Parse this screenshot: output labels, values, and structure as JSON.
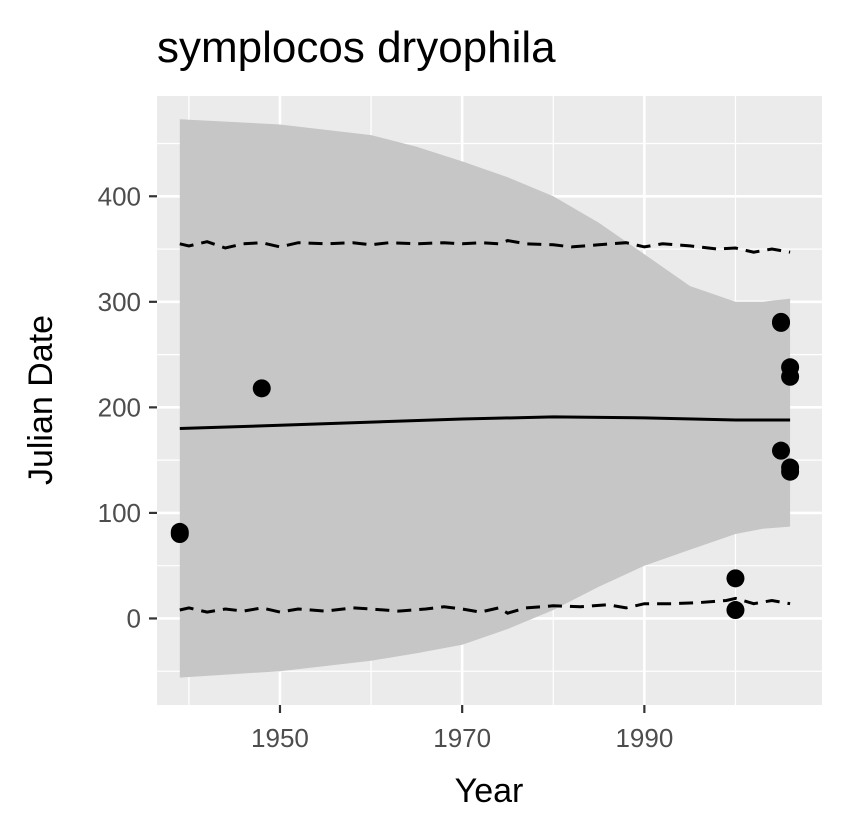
{
  "chart_data": {
    "type": "scatter",
    "title": "symplocos dryophila",
    "xlabel": "Year",
    "ylabel": "Julian Date",
    "xlim": [
      1936.5,
      2009.5
    ],
    "ylim": [
      -82,
      495
    ],
    "x_ticks": [
      1950,
      1970,
      1990
    ],
    "y_ticks": [
      0,
      100,
      200,
      300,
      400
    ],
    "grid": true,
    "legend": "none",
    "colors": {
      "panel": "#ebebeb",
      "grid": "#ffffff",
      "ribbon": "#c6c6c6",
      "line": "#000000",
      "points": "#000000"
    },
    "points": [
      {
        "x": 1939,
        "y": 80
      },
      {
        "x": 1939,
        "y": 82
      },
      {
        "x": 1948,
        "y": 218
      },
      {
        "x": 2000,
        "y": 38
      },
      {
        "x": 2000,
        "y": 8
      },
      {
        "x": 2005,
        "y": 280
      },
      {
        "x": 2005,
        "y": 281
      },
      {
        "x": 2005,
        "y": 159
      },
      {
        "x": 2006,
        "y": 238
      },
      {
        "x": 2006,
        "y": 229
      },
      {
        "x": 2006,
        "y": 143
      },
      {
        "x": 2006,
        "y": 139
      }
    ],
    "fit_line": {
      "x": [
        1939,
        1950,
        1960,
        1970,
        1980,
        1990,
        2000,
        2006
      ],
      "y": [
        180,
        183,
        186,
        189,
        191,
        190,
        188,
        188
      ]
    },
    "ribbon": {
      "x": [
        1939,
        1950,
        1960,
        1965,
        1970,
        1975,
        1980,
        1985,
        1990,
        1995,
        2000,
        2003,
        2006
      ],
      "upper": [
        473,
        468,
        458,
        447,
        433,
        418,
        400,
        375,
        345,
        315,
        300,
        300,
        303
      ],
      "lower": [
        -56,
        -50,
        -40,
        -33,
        -25,
        -10,
        8,
        30,
        50,
        65,
        80,
        85,
        87
      ]
    },
    "dashed_upper": {
      "x": [
        1939,
        1940,
        1942,
        1944,
        1946,
        1948,
        1950,
        1952,
        1955,
        1958,
        1960,
        1962,
        1965,
        1968,
        1970,
        1972,
        1974,
        1975,
        1977,
        1980,
        1982,
        1985,
        1988,
        1990,
        1992,
        1995,
        1998,
        2000,
        2002,
        2004,
        2006
      ],
      "y": [
        355,
        353,
        357,
        351,
        355,
        356,
        352,
        356,
        355,
        356,
        354,
        356,
        355,
        356,
        355,
        356,
        355,
        358,
        355,
        354,
        352,
        354,
        356,
        352,
        355,
        353,
        350,
        351,
        347,
        350,
        347
      ]
    },
    "dashed_lower": {
      "x": [
        1939,
        1940,
        1942,
        1944,
        1946,
        1948,
        1950,
        1952,
        1955,
        1958,
        1960,
        1963,
        1966,
        1968,
        1970,
        1972,
        1974,
        1975,
        1977,
        1980,
        1983,
        1986,
        1988,
        1990,
        1993,
        1996,
        1999,
        2000,
        2002,
        2004,
        2006
      ],
      "y": [
        8,
        10,
        6,
        9,
        7,
        10,
        6,
        9,
        7,
        10,
        9,
        7,
        9,
        11,
        9,
        6,
        10,
        5,
        10,
        12,
        11,
        13,
        10,
        14,
        14,
        15,
        17,
        19,
        14,
        17,
        14
      ]
    }
  }
}
